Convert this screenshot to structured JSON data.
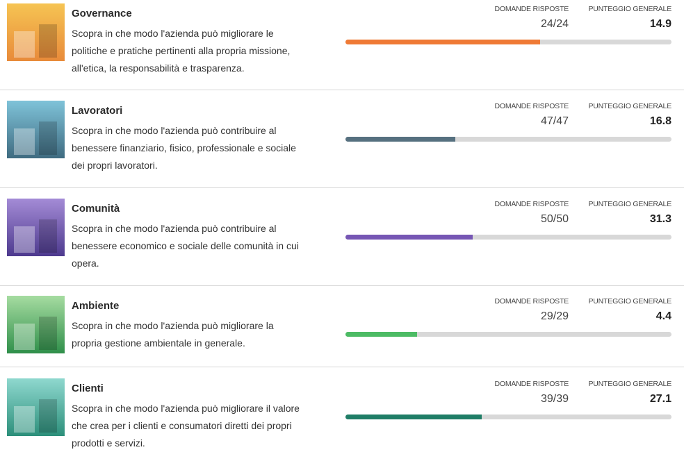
{
  "sections": [
    {
      "title": "Governance",
      "description": [
        "Scopra in che modo l'azienda può migliorare le",
        "politiche e pratiche pertinenti alla propria missione,",
        "all'etica, la responsabilità e trasparenza."
      ],
      "answered_label": "DOMANDE RISPOSTE",
      "answered": "24/24",
      "score_label": "PUNTEGGIO GENERALE",
      "score": 14.9,
      "xlim": [
        0,
        25
      ],
      "color": "#ef7a35"
    },
    {
      "title": "Lavoratori",
      "description": [
        "Scopra in che modo l'azienda può contribuire al",
        "benessere finanziario, fisico, professionale e sociale",
        "dei propri lavoratori."
      ],
      "answered_label": "DOMANDE RISPOSTE",
      "answered": "47/47",
      "score_label": "PUNTEGGIO GENERALE",
      "score": 16.8,
      "xlim": [
        0,
        50
      ],
      "color": "#56707f"
    },
    {
      "title": "Comunità",
      "description": [
        "Scopra in che modo l'azienda può contribuire al",
        "benessere economico e sociale delle comunità in cui",
        "opera."
      ],
      "answered_label": "DOMANDE RISPOSTE",
      "answered": "50/50",
      "score_label": "PUNTEGGIO GENERALE",
      "score": 31.3,
      "xlim": [
        0,
        80
      ],
      "color": "#7656b4"
    },
    {
      "title": "Ambiente",
      "description": [
        "Scopra in che modo l'azienda può migliorare la",
        "propria gestione ambientale in generale."
      ],
      "answered_label": "DOMANDE RISPOSTE",
      "answered": "29/29",
      "score_label": "PUNTEGGIO GENERALE",
      "score": 4.4,
      "xlim": [
        0,
        20
      ],
      "color": "#4cbb64"
    },
    {
      "title": "Clienti",
      "description": [
        "Scopra in che modo l'azienda può migliorare il valore",
        "che crea per i clienti e consumatori diretti dei propri",
        "prodotti e servizi."
      ],
      "answered_label": "DOMANDE RISPOSTE",
      "answered": "39/39",
      "score_label": "PUNTEGGIO GENERALE",
      "score": 27.1,
      "xlim": [
        0,
        65
      ],
      "color": "#1f7d66"
    }
  ]
}
